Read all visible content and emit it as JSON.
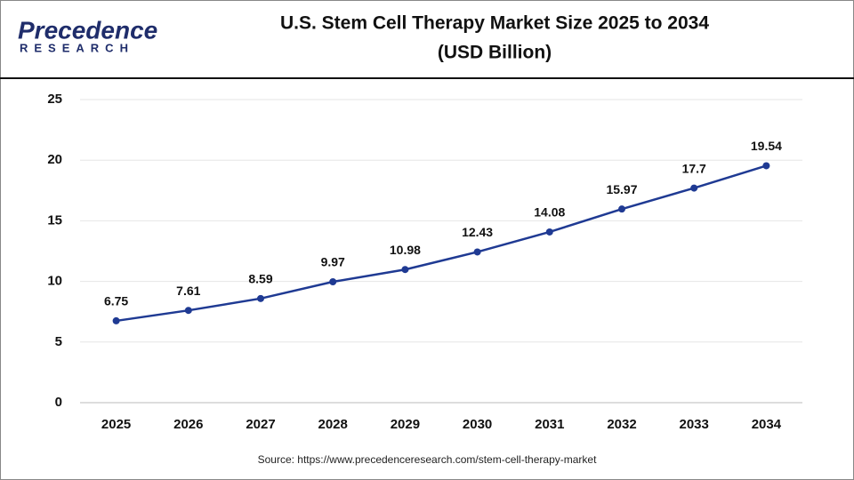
{
  "logo": {
    "name": "Precedence",
    "tagline": "RESEARCH"
  },
  "chart_data": {
    "type": "line",
    "title": "U.S. Stem Cell Therapy Market Size 2025 to 2034",
    "subtitle": "(USD Billion)",
    "categories": [
      "2025",
      "2026",
      "2027",
      "2028",
      "2029",
      "2030",
      "2031",
      "2032",
      "2033",
      "2034"
    ],
    "values": [
      6.75,
      7.61,
      8.59,
      9.97,
      10.98,
      12.43,
      14.08,
      15.97,
      17.7,
      19.54
    ],
    "color": "#1f3a93",
    "ylim": [
      0,
      25
    ],
    "yticks": [
      0,
      5,
      10,
      15,
      20,
      25
    ],
    "grid": true,
    "source": "Source: https://www.precedenceresearch.com/stem-cell-therapy-market"
  }
}
